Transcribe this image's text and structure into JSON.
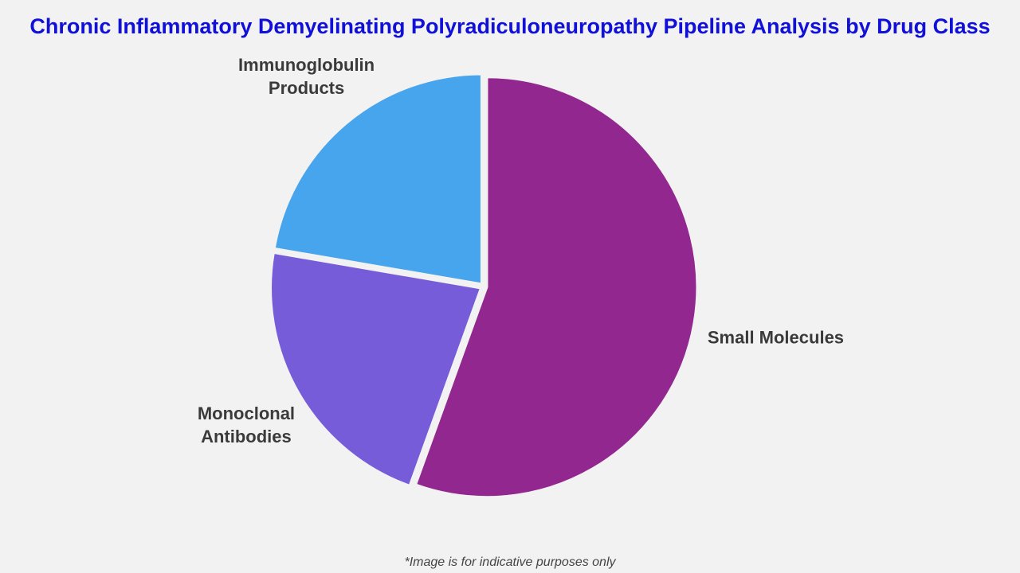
{
  "chart_data": {
    "type": "pie",
    "title": "Chronic Inflammatory Demyelinating Polyradiculoneuropathy Pipeline Analysis by Drug Class",
    "note": "*Image is for indicative purposes only",
    "categories": [
      "Small Molecules",
      "Monoclonal Antibodies",
      "Immunoglobulin Products"
    ],
    "values": [
      55.5,
      22.2,
      22.3
    ],
    "colors": [
      "#92278f",
      "#765cd9",
      "#47a5ed"
    ]
  }
}
